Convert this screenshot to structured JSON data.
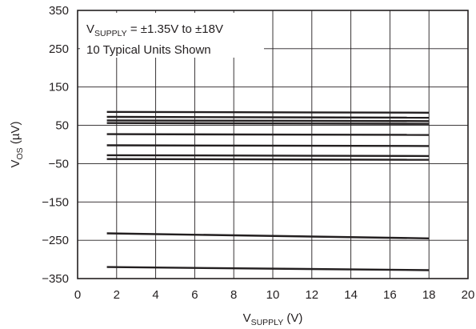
{
  "chart_data": {
    "type": "line",
    "xlabel": {
      "main": "V",
      "sub": "SUPPLY",
      "rest": " (V)"
    },
    "ylabel": {
      "main": "V",
      "sub": "OS",
      "rest": " (µV)"
    },
    "xlim": [
      0,
      20
    ],
    "ylim": [
      -350,
      350
    ],
    "x_ticks": [
      "0",
      "2",
      "4",
      "6",
      "8",
      "10",
      "12",
      "14",
      "16",
      "18",
      "20"
    ],
    "y_ticks": [
      "350",
      "250",
      "150",
      "50",
      "−50",
      "−150",
      "−250",
      "−350"
    ],
    "y_tick_values": [
      350,
      250,
      150,
      50,
      -50,
      -150,
      -250,
      -350
    ],
    "x_tick_values": [
      0,
      2,
      4,
      6,
      8,
      10,
      12,
      14,
      16,
      18,
      20
    ],
    "grid": true,
    "annotation": {
      "line1_main": "V",
      "line1_sub": "SUPPLY",
      "line1_rest": " = ±1.35V to ±18V",
      "line2": "10 Typical Units Shown"
    },
    "series": [
      {
        "x": [
          1.5,
          18
        ],
        "y": [
          85,
          83
        ]
      },
      {
        "x": [
          1.5,
          18
        ],
        "y": [
          72,
          70
        ]
      },
      {
        "x": [
          1.5,
          18
        ],
        "y": [
          63,
          61
        ]
      },
      {
        "x": [
          1.5,
          18
        ],
        "y": [
          56,
          54
        ]
      },
      {
        "x": [
          1.5,
          18
        ],
        "y": [
          27,
          25
        ]
      },
      {
        "x": [
          1.5,
          18
        ],
        "y": [
          -2,
          -4
        ]
      },
      {
        "x": [
          1.5,
          18
        ],
        "y": [
          -28,
          -30
        ]
      },
      {
        "x": [
          1.5,
          18
        ],
        "y": [
          -38,
          -40
        ]
      },
      {
        "x": [
          1.5,
          18
        ],
        "y": [
          -232,
          -245
        ]
      },
      {
        "x": [
          1.5,
          18
        ],
        "y": [
          -320,
          -328
        ]
      }
    ]
  }
}
